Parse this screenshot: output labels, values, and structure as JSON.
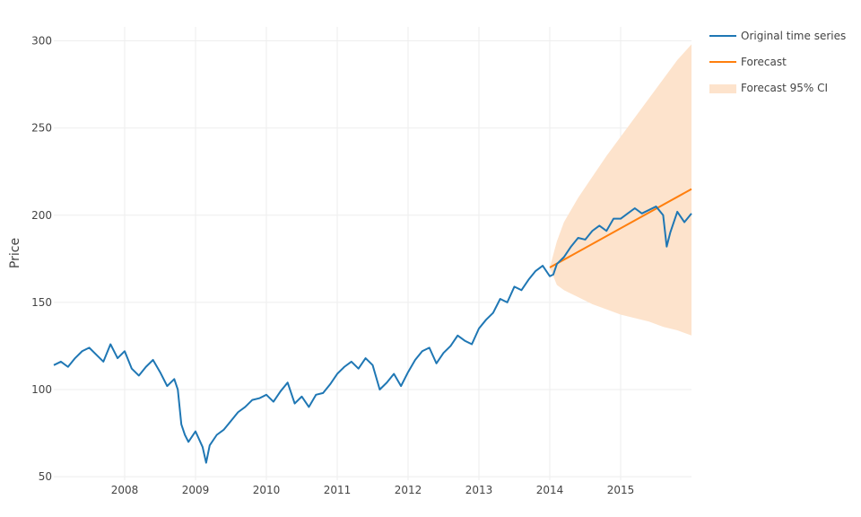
{
  "chart_data": {
    "type": "line",
    "title": "",
    "xlabel": "",
    "ylabel": "Price",
    "xlim": [
      2007.0,
      2016.0
    ],
    "ylim": [
      48,
      308
    ],
    "yticks": [
      50,
      100,
      150,
      200,
      250,
      300
    ],
    "xticks": [
      2008,
      2009,
      2010,
      2011,
      2012,
      2013,
      2014,
      2015
    ],
    "xtick_labels": [
      "2008",
      "2009",
      "2010",
      "2011",
      "2012",
      "2013",
      "2014",
      "2015"
    ],
    "ytick_labels": [
      "50",
      "100",
      "150",
      "200",
      "250",
      "300"
    ],
    "grid": true,
    "legend_position": "top-right",
    "colors": {
      "original": "#1f77b4",
      "forecast": "#ff7f0e",
      "ci_fill": "#fde3cc",
      "grid": "#eeeeee"
    },
    "series": [
      {
        "name": "Original time series",
        "x": [
          2007.0,
          2007.1,
          2007.2,
          2007.3,
          2007.4,
          2007.5,
          2007.6,
          2007.7,
          2007.8,
          2007.9,
          2008.0,
          2008.1,
          2008.2,
          2008.3,
          2008.4,
          2008.5,
          2008.6,
          2008.7,
          2008.75,
          2008.8,
          2008.85,
          2008.9,
          2009.0,
          2009.1,
          2009.15,
          2009.2,
          2009.3,
          2009.4,
          2009.5,
          2009.6,
          2009.7,
          2009.8,
          2009.9,
          2010.0,
          2010.1,
          2010.2,
          2010.3,
          2010.4,
          2010.5,
          2010.6,
          2010.7,
          2010.8,
          2010.9,
          2011.0,
          2011.1,
          2011.2,
          2011.3,
          2011.4,
          2011.5,
          2011.6,
          2011.7,
          2011.8,
          2011.9,
          2012.0,
          2012.1,
          2012.2,
          2012.3,
          2012.4,
          2012.5,
          2012.6,
          2012.7,
          2012.8,
          2012.9,
          2013.0,
          2013.1,
          2013.2,
          2013.3,
          2013.4,
          2013.5,
          2013.6,
          2013.7,
          2013.8,
          2013.9,
          2014.0,
          2014.05,
          2014.1,
          2014.2,
          2014.3,
          2014.4,
          2014.5,
          2014.6,
          2014.7,
          2014.8,
          2014.9,
          2015.0,
          2015.1,
          2015.2,
          2015.3,
          2015.4,
          2015.5,
          2015.6,
          2015.65,
          2015.7,
          2015.8,
          2015.9,
          2016.0
        ],
        "values": [
          114,
          116,
          113,
          118,
          122,
          124,
          120,
          116,
          126,
          118,
          122,
          112,
          108,
          113,
          117,
          110,
          102,
          106,
          100,
          80,
          74,
          70,
          76,
          67,
          58,
          68,
          74,
          77,
          82,
          87,
          90,
          94,
          95,
          97,
          93,
          99,
          104,
          92,
          96,
          90,
          97,
          98,
          103,
          109,
          113,
          116,
          112,
          118,
          114,
          100,
          104,
          109,
          102,
          110,
          117,
          122,
          124,
          115,
          121,
          125,
          131,
          128,
          126,
          135,
          140,
          144,
          152,
          150,
          159,
          157,
          163,
          168,
          171,
          165,
          166,
          172,
          176,
          182,
          187,
          186,
          191,
          194,
          191,
          198,
          198,
          201,
          204,
          201,
          203,
          205,
          200,
          182,
          190,
          202,
          196,
          201
        ]
      },
      {
        "name": "Forecast",
        "x": [
          2014.0,
          2016.0
        ],
        "values": [
          170,
          215
        ]
      },
      {
        "name": "Forecast 95% CI",
        "x": [
          2014.0,
          2014.1,
          2014.2,
          2014.4,
          2014.6,
          2014.8,
          2015.0,
          2015.2,
          2015.4,
          2015.6,
          2015.8,
          2016.0
        ],
        "upper": [
          170,
          185,
          196,
          210,
          222,
          234,
          245,
          256,
          267,
          278,
          289,
          298
        ],
        "lower": [
          170,
          160,
          157,
          153,
          149,
          146,
          143,
          141,
          139,
          136,
          134,
          131
        ]
      }
    ]
  }
}
